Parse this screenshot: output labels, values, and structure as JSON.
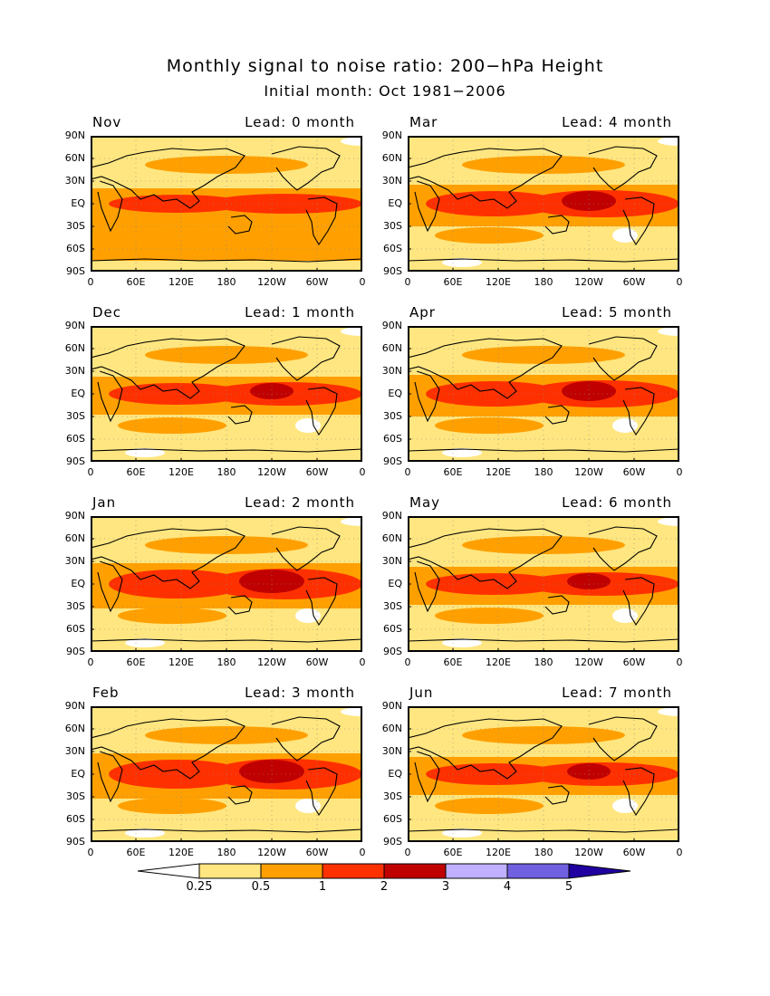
{
  "title": "Monthly signal to noise ratio: 200−hPa Height",
  "subtitle": "Initial month: Oct 1981−2006",
  "y_ticks": [
    "90N",
    "60N",
    "30N",
    "EQ",
    "30S",
    "60S",
    "90S"
  ],
  "x_ticks": [
    "0",
    "60E",
    "120E",
    "180",
    "120W",
    "60W",
    "0"
  ],
  "panels": [
    {
      "month": "Nov",
      "lead": "Lead: 0 month",
      "intensity": 0
    },
    {
      "month": "Mar",
      "lead": "Lead: 4 month",
      "intensity": 2
    },
    {
      "month": "Dec",
      "lead": "Lead: 1 month",
      "intensity": 1
    },
    {
      "month": "Apr",
      "lead": "Lead: 5 month",
      "intensity": 2
    },
    {
      "month": "Jan",
      "lead": "Lead: 2 month",
      "intensity": 3
    },
    {
      "month": "May",
      "lead": "Lead: 6 month",
      "intensity": 1
    },
    {
      "month": "Feb",
      "lead": "Lead: 3 month",
      "intensity": 3
    },
    {
      "month": "Jun",
      "lead": "Lead: 7 month",
      "intensity": 1
    }
  ],
  "colorbar": {
    "labels": [
      "0.25",
      "0.5",
      "1",
      "2",
      "3",
      "4",
      "5"
    ],
    "colors": [
      "#ffffff",
      "#ffe680",
      "#ffa000",
      "#ff3000",
      "#c00000",
      "#c0b0ff",
      "#7060e0",
      "#2000a0"
    ]
  },
  "colors": {
    "level1": "#ffe680",
    "level2": "#ffa000",
    "level3": "#ff3000",
    "level4": "#c00000",
    "low": "#ffffff"
  }
}
